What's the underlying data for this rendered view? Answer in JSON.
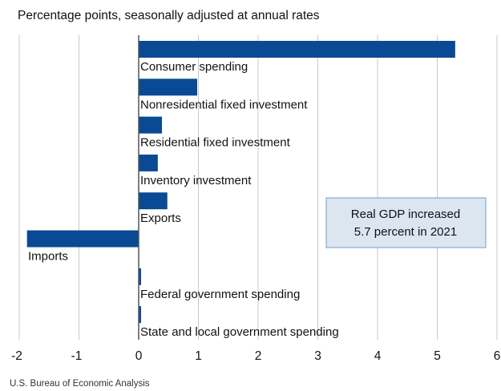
{
  "chart_data": {
    "type": "bar",
    "orientation": "horizontal",
    "subtitle": "Percentage points, seasonally adjusted at annual rates",
    "categories": [
      "Consumer spending",
      "Nonresidential fixed investment",
      "Residential fixed investment",
      "Inventory investment",
      "Exports",
      "Imports",
      "Federal government spending",
      "State and local government spending"
    ],
    "values": [
      5.3,
      0.98,
      0.39,
      0.32,
      0.48,
      -1.87,
      0.04,
      0.04
    ],
    "xlim": [
      -2,
      6
    ],
    "xticks": [
      "-2",
      "-1",
      "0",
      "1",
      "2",
      "3",
      "4",
      "5",
      "6"
    ],
    "bar_color": "#0a4a94",
    "grid": "vertical",
    "annotation": [
      "Real GDP increased",
      "5.7 percent in 2021"
    ],
    "source": "U.S. Bureau of Economic Analysis"
  }
}
